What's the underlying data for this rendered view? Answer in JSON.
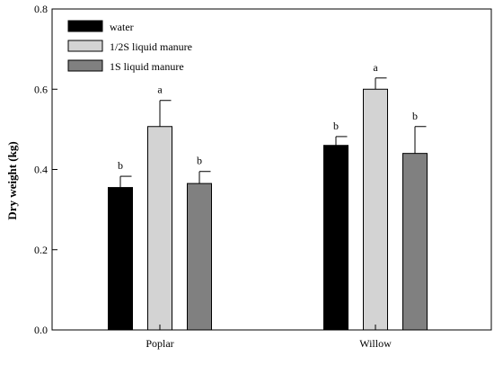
{
  "chart_data": {
    "type": "bar",
    "title": "",
    "xlabel": "",
    "ylabel": "Dry weight (kg)",
    "ylim": [
      0,
      0.8
    ],
    "yticks": [
      "0.0",
      "0.2",
      "0.4",
      "0.6",
      "0.8"
    ],
    "ytick_values": [
      0,
      0.2,
      0.4,
      0.6,
      0.8
    ],
    "grid": false,
    "legend_position": "top-left",
    "categories": [
      "Poplar",
      "Willow"
    ],
    "series": [
      {
        "name": "water",
        "color": "#000000",
        "values": [
          0.355,
          0.46
        ],
        "errors": [
          0.028,
          0.022
        ],
        "labels": [
          "b",
          "b"
        ]
      },
      {
        "name": "1/2S liquid manure",
        "color": "#d3d3d3",
        "values": [
          0.507,
          0.6
        ],
        "errors": [
          0.065,
          0.028
        ],
        "labels": [
          "a",
          "a"
        ]
      },
      {
        "name": "1S liquid manure",
        "color": "#808080",
        "values": [
          0.365,
          0.44
        ],
        "errors": [
          0.03,
          0.067
        ],
        "labels": [
          "b",
          "b"
        ]
      }
    ]
  }
}
